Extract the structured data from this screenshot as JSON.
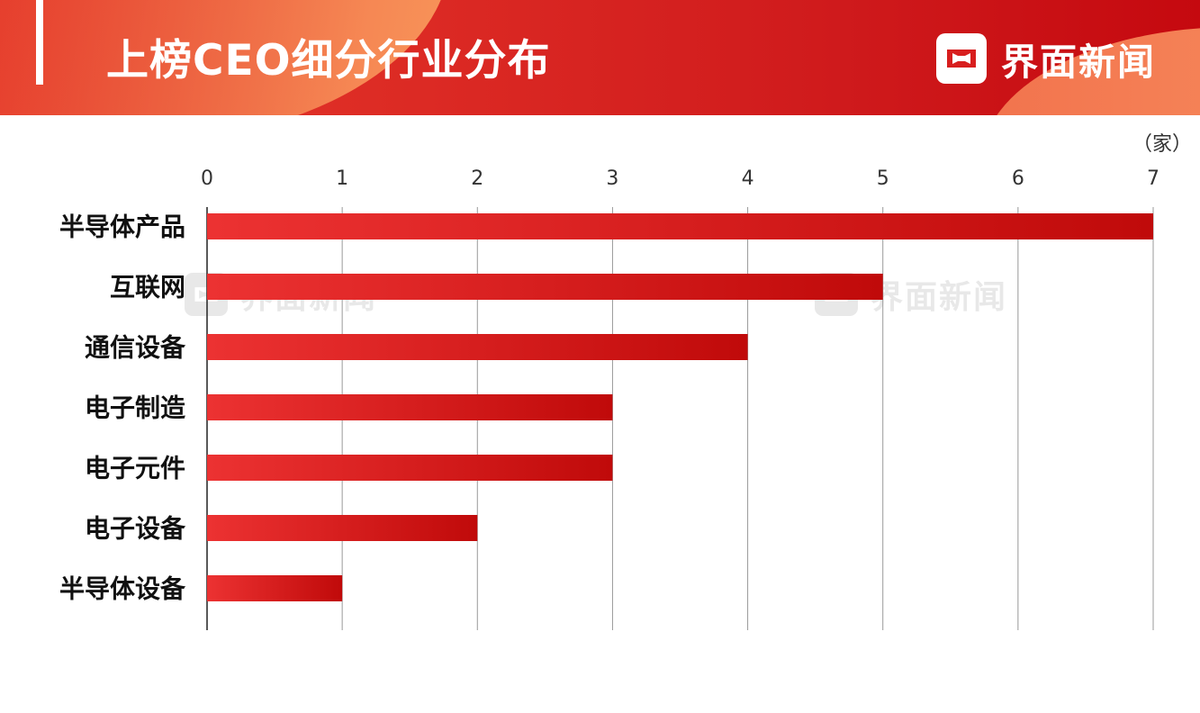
{
  "header": {
    "title": "上榜CEO细分行业分布",
    "brand": "界面新闻",
    "accent_color": "#d81e1e"
  },
  "watermark": {
    "text": "界面新闻"
  },
  "chart_data": {
    "type": "bar",
    "orientation": "horizontal",
    "unit": "（家）",
    "categories": [
      "半导体产品",
      "互联网",
      "通信设备",
      "电子制造",
      "电子元件",
      "电子设备",
      "半导体设备"
    ],
    "values": [
      7,
      5,
      4,
      3,
      3,
      2,
      1
    ],
    "xlim": [
      0,
      7
    ],
    "ticks": [
      "0",
      "1",
      "2",
      "3",
      "4",
      "5",
      "6",
      "7"
    ],
    "grid": true,
    "bar_color_start": "#ec3232",
    "bar_color_end": "#c00a0a"
  }
}
